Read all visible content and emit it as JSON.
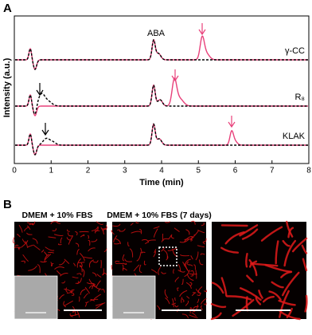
{
  "panel_a": {
    "label": "A",
    "y_label": "Intensity (a.u.)",
    "x_label": "Time (min)",
    "xlim": [
      0,
      8
    ],
    "xticks": [
      0,
      1,
      2,
      3,
      4,
      5,
      6,
      7,
      8
    ],
    "peak_label": "ABA",
    "traces": [
      {
        "name": "γ-CC"
      },
      {
        "name": "R₈"
      },
      {
        "name": "KLAK"
      }
    ]
  },
  "panel_b": {
    "label": "B",
    "captions": [
      "DMEM + 10% FBS",
      "DMEM + 10% FBS (7 days)"
    ]
  }
}
